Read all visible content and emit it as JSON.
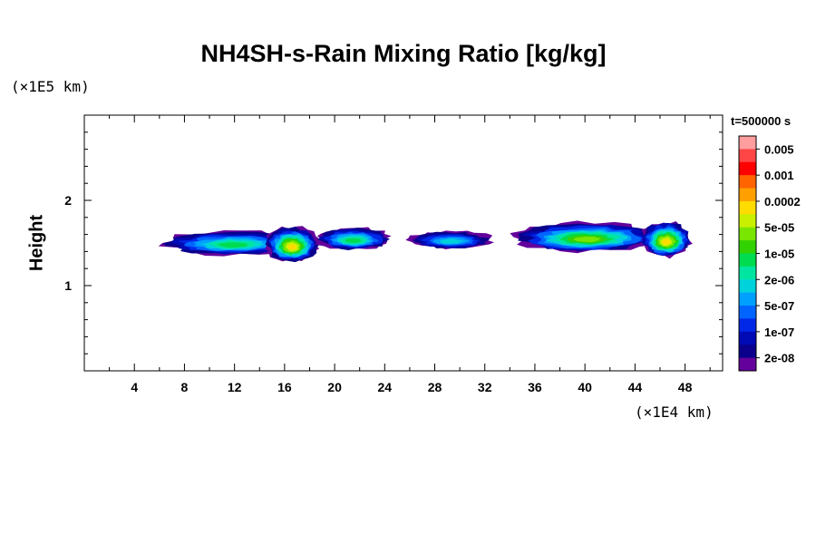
{
  "chart_data": {
    "type": "heatmap",
    "title": "NH4SH-s-Rain Mixing Ratio [kg/kg]",
    "xlabel": "",
    "ylabel": "Height",
    "x_unit": "(×1E4 km)",
    "y_unit": "(×1E5 km)",
    "xlim": [
      0,
      51
    ],
    "ylim": [
      0,
      3
    ],
    "x_ticks": [
      4,
      8,
      12,
      16,
      20,
      24,
      28,
      32,
      36,
      40,
      44,
      48
    ],
    "x_tick_labels": [
      "4",
      "8",
      "12",
      "16",
      "20",
      "24",
      "28",
      "32",
      "36",
      "40",
      "44",
      "48"
    ],
    "y_ticks": [
      1,
      2
    ],
    "y_tick_labels": [
      "1",
      "2"
    ],
    "time_label": "t=500000 s",
    "colorbar": {
      "labels": [
        "0.005",
        "0.001",
        "0.0002",
        "5e-05",
        "1e-05",
        "2e-06",
        "5e-07",
        "1e-07",
        "2e-08"
      ],
      "colors": [
        "#ff9e9e",
        "#ff4646",
        "#ff0000",
        "#ff6400",
        "#ffa000",
        "#ffdc00",
        "#c8f000",
        "#78e600",
        "#32d200",
        "#00dc50",
        "#00e6a0",
        "#00d2dc",
        "#00a0ff",
        "#0064ff",
        "#0028e6",
        "#000ab4",
        "#0a008c",
        "#64009b"
      ]
    },
    "features": [
      {
        "x": [
          6.3,
          17.5
        ],
        "y": [
          1.36,
          1.64
        ],
        "peak": "1e-05"
      },
      {
        "x": [
          14.5,
          18.7
        ],
        "y": [
          1.28,
          1.69
        ],
        "peak": "0.0002"
      },
      {
        "x": [
          18.5,
          24.5
        ],
        "y": [
          1.42,
          1.68
        ],
        "peak": "1e-05"
      },
      {
        "x": [
          26.0,
          32.6
        ],
        "y": [
          1.43,
          1.64
        ],
        "peak": "2e-06"
      },
      {
        "x": [
          34.5,
          45.8
        ],
        "y": [
          1.4,
          1.74
        ],
        "peak": "5e-05"
      },
      {
        "x": [
          44.5,
          48.5
        ],
        "y": [
          1.34,
          1.75
        ],
        "peak": "0.0002"
      }
    ]
  }
}
